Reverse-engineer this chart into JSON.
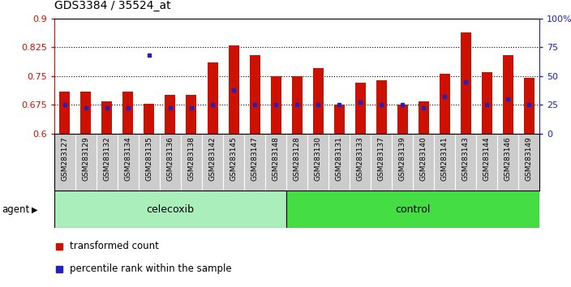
{
  "title": "GDS3384 / 35524_at",
  "samples": [
    "GSM283127",
    "GSM283129",
    "GSM283132",
    "GSM283134",
    "GSM283135",
    "GSM283136",
    "GSM283138",
    "GSM283142",
    "GSM283145",
    "GSM283147",
    "GSM283148",
    "GSM283128",
    "GSM283130",
    "GSM283131",
    "GSM283133",
    "GSM283137",
    "GSM283139",
    "GSM283140",
    "GSM283141",
    "GSM283143",
    "GSM283144",
    "GSM283146",
    "GSM283149"
  ],
  "transformed_count": [
    0.71,
    0.71,
    0.683,
    0.71,
    0.678,
    0.7,
    0.7,
    0.785,
    0.83,
    0.805,
    0.75,
    0.75,
    0.77,
    0.675,
    0.733,
    0.74,
    0.675,
    0.683,
    0.755,
    0.865,
    0.76,
    0.805,
    0.745
  ],
  "percentile_rank": [
    25,
    22,
    22,
    22,
    68,
    22,
    22,
    25,
    38,
    25,
    25,
    25,
    25,
    25,
    27,
    25,
    25,
    22,
    32,
    45,
    25,
    30,
    25
  ],
  "ylim_left": [
    0.6,
    0.9
  ],
  "ylim_right": [
    0,
    100
  ],
  "yticks_left": [
    0.6,
    0.675,
    0.75,
    0.825,
    0.9
  ],
  "ytick_labels_left": [
    "0.6",
    "0.675",
    "0.75",
    "0.825",
    "0.9"
  ],
  "yticks_right": [
    0,
    25,
    50,
    75,
    100
  ],
  "ytick_labels_right": [
    "0",
    "25",
    "50",
    "75",
    "100%"
  ],
  "bar_color": "#CC1100",
  "dot_color": "#2222BB",
  "celecoxib_count": 11,
  "control_count": 12,
  "agent_label": "agent",
  "celecoxib_label": "celecoxib",
  "control_label": "control",
  "celecoxib_color": "#AAEEBB",
  "control_color": "#44DD44",
  "bar_bottom": 0.6,
  "hgrid_values": [
    0.675,
    0.75,
    0.825
  ],
  "hgrid_color": "black",
  "hgrid_style": ":",
  "hgrid_lw": 0.8,
  "xtick_bg": "#CCCCCC",
  "bar_width": 0.5
}
